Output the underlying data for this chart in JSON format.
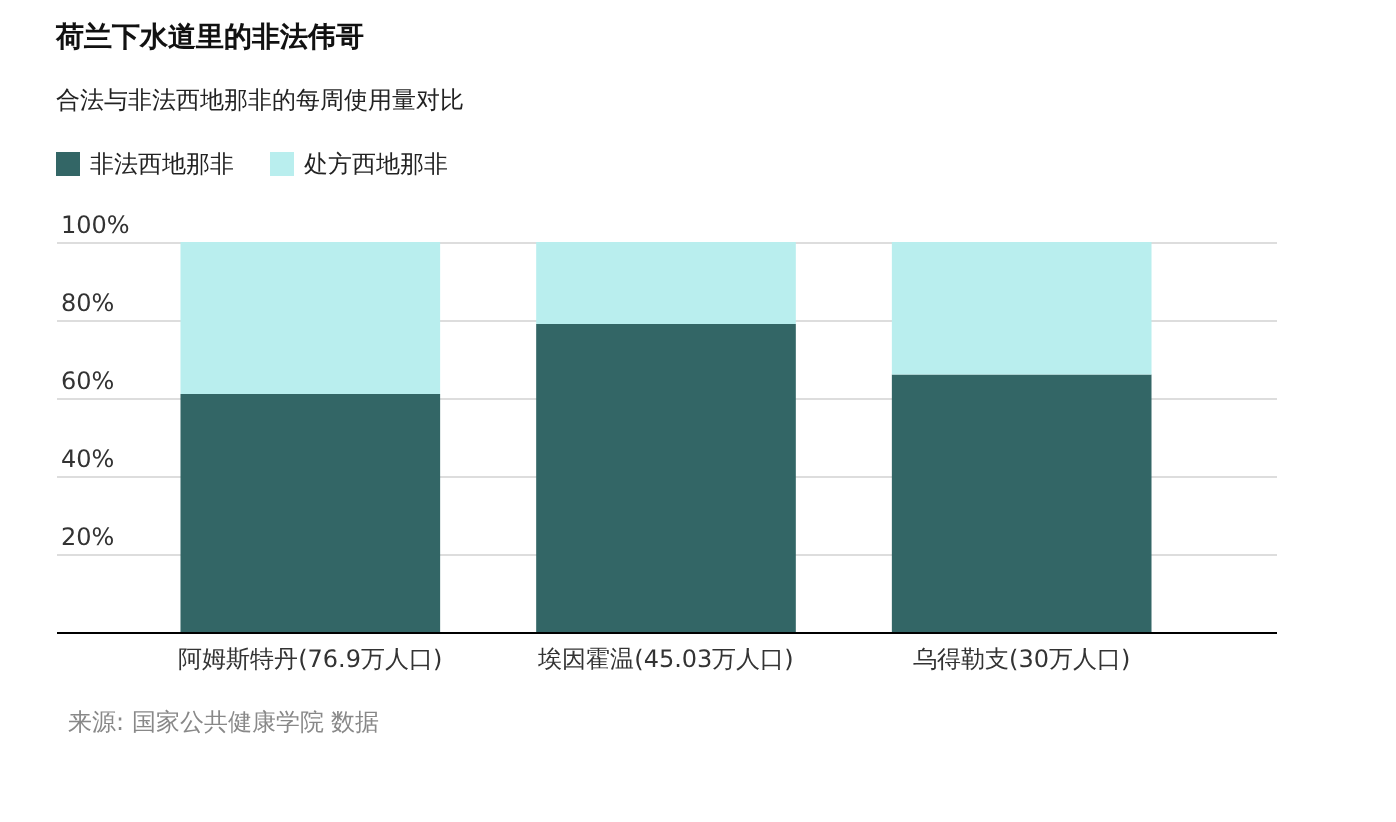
{
  "chart_data": {
    "type": "bar",
    "title": "荷兰下水道里的非法伟哥",
    "subtitle": "合法与非法西地那非的每周使用量对比",
    "categories": [
      "阿姆斯特丹(76.9万人口)",
      "埃因霍温(45.03万人口)",
      "乌得勒支(30万人口)"
    ],
    "series": [
      {
        "name": "非法西地那非",
        "color": "#336666",
        "values": [
          61,
          79,
          66
        ]
      },
      {
        "name": "处方西地那非",
        "color": "#b9eeee",
        "values": [
          39,
          21,
          34
        ]
      }
    ],
    "stacked": true,
    "ylim": [
      0,
      100
    ],
    "yticks": [
      {
        "value": 20,
        "label": "20%"
      },
      {
        "value": 40,
        "label": "40%"
      },
      {
        "value": 60,
        "label": "60%"
      },
      {
        "value": 80,
        "label": "80%"
      },
      {
        "value": 100,
        "label": "100%"
      }
    ],
    "grid": "y",
    "legend": "top left",
    "annotations": [
      "来源: 国家公共健康学院 数据"
    ]
  }
}
